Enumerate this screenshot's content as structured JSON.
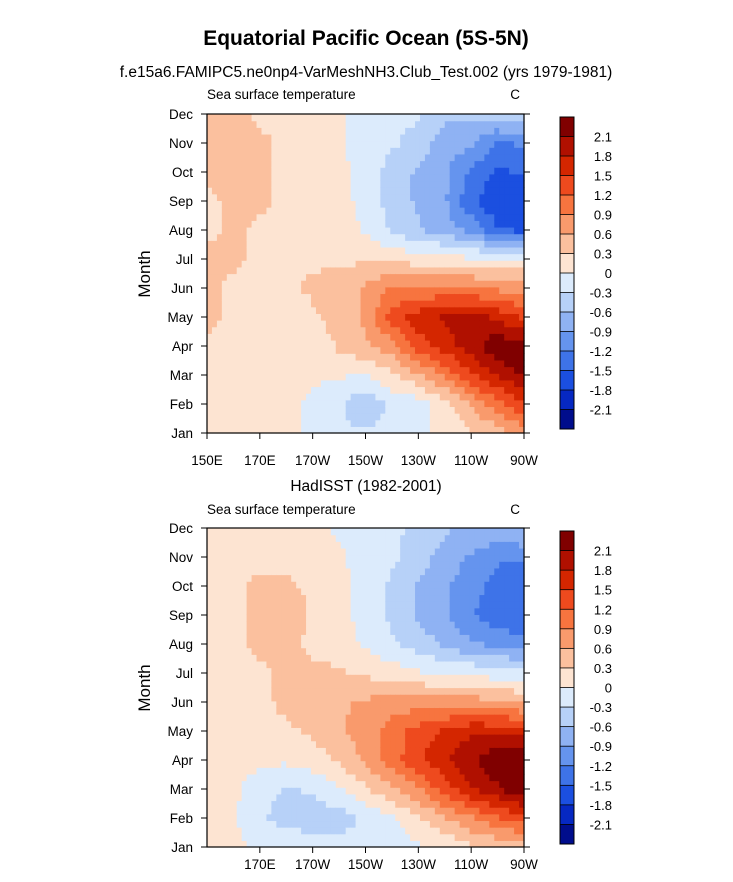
{
  "figure": {
    "title": "Equatorial Pacific Ocean (5S-5N)"
  },
  "colorbar": {
    "levels": [
      "2.1",
      "1.8",
      "1.5",
      "1.2",
      "0.9",
      "0.6",
      "0.3",
      "0",
      "-0.3",
      "-0.6",
      "-0.9",
      "-1.2",
      "-1.5",
      "-1.8",
      "-2.1"
    ],
    "colors": [
      "#800000",
      "#B01000",
      "#D42600",
      "#EE4A1E",
      "#F7743F",
      "#F99A6C",
      "#FBC09E",
      "#FDE4D2",
      "#DCEBFC",
      "#B7D1F8",
      "#8FB2F3",
      "#6594EE",
      "#3E73E8",
      "#1B4FE0",
      "#0628C2",
      "#000D8C"
    ]
  },
  "chart_data": [
    {
      "type": "heatmap",
      "title": "f.e15a6.FAMIPC5.ne0np4-VarMeshNH3.Club_Test.002 (yrs 1979-1981)",
      "left_string": "Sea surface temperature",
      "right_string": "C",
      "xlabel": "",
      "ylabel": "Month",
      "xlim": [
        150,
        270
      ],
      "x_tick_values": [
        150,
        170,
        190,
        210,
        230,
        250,
        270
      ],
      "x_tick_labels": [
        "150E",
        "170E",
        "170W",
        "150W",
        "130W",
        "110W",
        "90W"
      ],
      "y_tick_labels": [
        "Jan",
        "Feb",
        "Mar",
        "Apr",
        "May",
        "Jun",
        "Jul",
        "Aug",
        "Sep",
        "Oct",
        "Nov",
        "Dec"
      ],
      "lon": [
        150,
        160,
        170,
        180,
        190,
        200,
        210,
        220,
        230,
        240,
        250,
        260,
        270
      ],
      "values": [
        [
          0.1,
          0.1,
          -0.1,
          -0.1,
          -0.2,
          -0.4,
          -0.4,
          -0.3,
          -0.2,
          -0.1,
          0.1,
          0.3,
          0.6
        ],
        [
          0.1,
          0.1,
          -0.1,
          -0.1,
          -0.2,
          -0.4,
          -0.7,
          -0.4,
          -0.3,
          0.0,
          0.5,
          0.9,
          1.3
        ],
        [
          0.1,
          0.1,
          0.0,
          -0.1,
          -0.1,
          -0.1,
          -0.2,
          0.1,
          0.4,
          0.8,
          1.3,
          1.7,
          2.0
        ],
        [
          0.1,
          0.1,
          0.0,
          -0.1,
          -0.1,
          0.2,
          0.4,
          0.6,
          1.2,
          1.5,
          1.8,
          2.2,
          2.1
        ],
        [
          0.2,
          0.1,
          0.0,
          -0.1,
          0.1,
          0.3,
          0.5,
          1.2,
          1.5,
          1.7,
          1.8,
          1.6,
          1.3
        ],
        [
          0.2,
          0.1,
          0.0,
          0.1,
          0.2,
          0.3,
          0.5,
          0.8,
          0.8,
          0.8,
          0.8,
          0.7,
          0.6
        ],
        [
          0.2,
          0.2,
          0.1,
          0.1,
          0.1,
          0.1,
          0.1,
          0.1,
          0.0,
          0.0,
          -0.1,
          -0.1,
          -0.1
        ],
        [
          0.1,
          0.2,
          0.1,
          0.1,
          0.0,
          0.0,
          -0.2,
          -0.5,
          -0.7,
          -0.9,
          -1.1,
          -1.6,
          -1.7
        ],
        [
          0.1,
          0.2,
          0.2,
          0.1,
          0.0,
          -0.1,
          -0.2,
          -0.6,
          -0.8,
          -1.0,
          -1.6,
          -1.9,
          -1.9
        ],
        [
          0.2,
          0.2,
          0.2,
          0.1,
          0.0,
          -0.1,
          -0.2,
          -0.6,
          -0.8,
          -1.0,
          -1.4,
          -1.7,
          -1.6
        ],
        [
          0.2,
          0.4,
          0.2,
          0.1,
          0.0,
          -0.1,
          -0.3,
          -0.4,
          -0.6,
          -0.9,
          -1.0,
          -1.4,
          -1.3
        ],
        [
          0.3,
          0.2,
          0.1,
          0.1,
          0.0,
          -0.1,
          -0.3,
          -0.3,
          -0.4,
          -0.7,
          -0.7,
          -0.6,
          -0.5
        ]
      ]
    },
    {
      "type": "heatmap",
      "title": "HadISST (1982-2001)",
      "left_string": "Sea surface temperature",
      "right_string": "C",
      "xlabel": "",
      "ylabel": "Month",
      "xlim": [
        150,
        270
      ],
      "x_tick_values": [
        170,
        190,
        210,
        230,
        250,
        270
      ],
      "x_tick_labels": [
        "170E",
        "170W",
        "150W",
        "130W",
        "110W",
        "90W"
      ],
      "y_tick_labels": [
        "Jan",
        "Feb",
        "Mar",
        "Apr",
        "May",
        "Jun",
        "Jul",
        "Aug",
        "Sep",
        "Oct",
        "Nov",
        "Dec"
      ],
      "lon": [
        150,
        160,
        170,
        180,
        190,
        200,
        210,
        220,
        230,
        240,
        250,
        260,
        270
      ],
      "values": [
        [
          0.0,
          -0.1,
          -0.2,
          -0.2,
          -0.3,
          -0.3,
          -0.4,
          -0.3,
          -0.2,
          -0.1,
          0.1,
          0.2,
          0.3
        ],
        [
          0.0,
          -0.1,
          -0.4,
          -0.6,
          -0.6,
          -0.6,
          -0.4,
          -0.2,
          0.1,
          0.4,
          0.7,
          1.0,
          1.2
        ],
        [
          0.0,
          -0.1,
          -0.3,
          -0.5,
          -0.4,
          -0.2,
          0.1,
          0.4,
          0.7,
          1.2,
          1.6,
          1.9,
          2.2
        ],
        [
          0.0,
          0.0,
          -0.1,
          -0.1,
          0.0,
          0.2,
          0.5,
          0.9,
          1.3,
          1.6,
          1.9,
          2.2,
          2.2
        ],
        [
          0.1,
          0.1,
          0.1,
          0.1,
          0.2,
          0.4,
          0.6,
          0.9,
          1.2,
          1.4,
          1.6,
          1.6,
          1.5
        ],
        [
          0.1,
          0.1,
          0.1,
          0.2,
          0.3,
          0.4,
          0.5,
          0.6,
          0.6,
          0.6,
          0.6,
          0.5,
          0.4
        ],
        [
          0.1,
          0.1,
          0.1,
          0.2,
          0.2,
          0.2,
          0.1,
          0.0,
          -0.1,
          -0.2,
          -0.2,
          -0.3,
          -0.3
        ],
        [
          0.0,
          0.1,
          0.2,
          0.2,
          0.1,
          0.0,
          -0.2,
          -0.4,
          -0.6,
          -0.8,
          -1.0,
          -1.1,
          -1.2
        ],
        [
          0.1,
          0.1,
          0.2,
          0.4,
          0.1,
          0.0,
          -0.3,
          -0.5,
          -0.8,
          -1.0,
          -1.3,
          -1.6,
          -1.6
        ],
        [
          0.1,
          0.1,
          0.2,
          0.2,
          0.1,
          0.0,
          -0.3,
          -0.5,
          -0.8,
          -1.0,
          -1.2,
          -1.5,
          -1.5
        ],
        [
          0.1,
          0.1,
          0.1,
          0.1,
          0.0,
          -0.1,
          -0.3,
          -0.4,
          -0.6,
          -0.9,
          -1.1,
          -1.3,
          -1.3
        ],
        [
          0.1,
          0.1,
          0.1,
          0.0,
          -0.1,
          -0.2,
          -0.3,
          -0.4,
          -0.5,
          -0.7,
          -0.8,
          -0.8,
          -0.7
        ]
      ]
    }
  ]
}
